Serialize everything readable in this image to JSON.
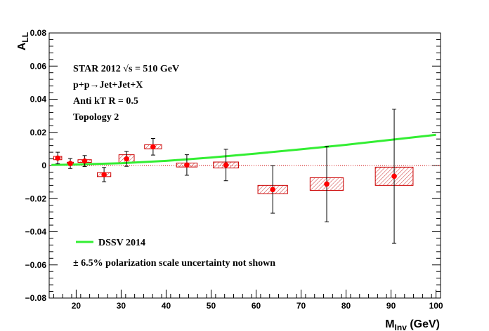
{
  "chart_data": {
    "type": "scatter",
    "xlabel_main": "M",
    "xlabel_sub": "Inv",
    "xlabel_unit": " (GeV)",
    "ylabel_main": "A",
    "ylabel_sub": "LL",
    "xlim": [
      14,
      101
    ],
    "ylim": [
      -0.08,
      0.08
    ],
    "x_ticks": [
      20,
      30,
      40,
      50,
      60,
      70,
      80,
      90,
      100
    ],
    "y_ticks": [
      -0.08,
      -0.06,
      -0.04,
      -0.02,
      0,
      0.02,
      0.04,
      0.06,
      0.08
    ],
    "x_tick_labels": [
      "20",
      "30",
      "40",
      "50",
      "60",
      "70",
      "80",
      "90",
      "100"
    ],
    "y_tick_labels": [
      "−0.08",
      "−0.06",
      "−0.04",
      "−0.02",
      "0",
      "0.02",
      "0.04",
      "0.06",
      "0.08"
    ],
    "annotations": {
      "line1": "STAR 2012   √s = 510 GeV",
      "line2": "p+p→Jet+Jet+X",
      "line3": "Anti kT R = 0.5",
      "line4": "Topology 2",
      "footnote": "± 6.5% polarization scale uncertainty not shown"
    },
    "legend": {
      "label": "DSSV 2014",
      "color": "#33ee33"
    },
    "series": [
      {
        "name": "STAR 2012",
        "color": "#ff0000",
        "points": [
          {
            "x": 15.9,
            "y": 0.0045,
            "err": 0.0035,
            "sx": 0.9,
            "sy": 0.001
          },
          {
            "x": 18.7,
            "y": 0.0012,
            "err": 0.003,
            "sx": 0.7,
            "sy": 0.0008
          },
          {
            "x": 21.9,
            "y": 0.0027,
            "err": 0.0033,
            "sx": 1.5,
            "sy": 0.0008
          },
          {
            "x": 26.2,
            "y": -0.0055,
            "err": 0.0043,
            "sx": 1.5,
            "sy": 0.0012
          },
          {
            "x": 31.2,
            "y": 0.004,
            "err": 0.0045,
            "sx": 1.7,
            "sy": 0.0025
          },
          {
            "x": 37.1,
            "y": 0.0113,
            "err": 0.005,
            "sx": 1.9,
            "sy": 0.0012
          },
          {
            "x": 44.6,
            "y": 0.0003,
            "err": 0.0062,
            "sx": 2.3,
            "sy": 0.0012
          },
          {
            "x": 53.3,
            "y": 0.0003,
            "err": 0.0095,
            "sx": 2.8,
            "sy": 0.0018
          },
          {
            "x": 63.7,
            "y": -0.0145,
            "err": 0.0143,
            "sx": 3.3,
            "sy": 0.0025
          },
          {
            "x": 75.7,
            "y": -0.0112,
            "err": 0.0228,
            "sx": 3.7,
            "sy": 0.0038
          },
          {
            "x": 90.7,
            "y": -0.0065,
            "err": 0.0405,
            "sx": 4.2,
            "sy": 0.0055
          }
        ]
      },
      {
        "name": "DSSV 2014",
        "color": "#33ee33",
        "x": [
          14.5,
          20,
          30,
          40,
          50,
          60,
          70,
          80,
          90,
          100
        ],
        "values": [
          0.0003,
          0.0006,
          0.0014,
          0.0028,
          0.0048,
          0.0072,
          0.0098,
          0.0125,
          0.0155,
          0.0185
        ]
      }
    ]
  }
}
